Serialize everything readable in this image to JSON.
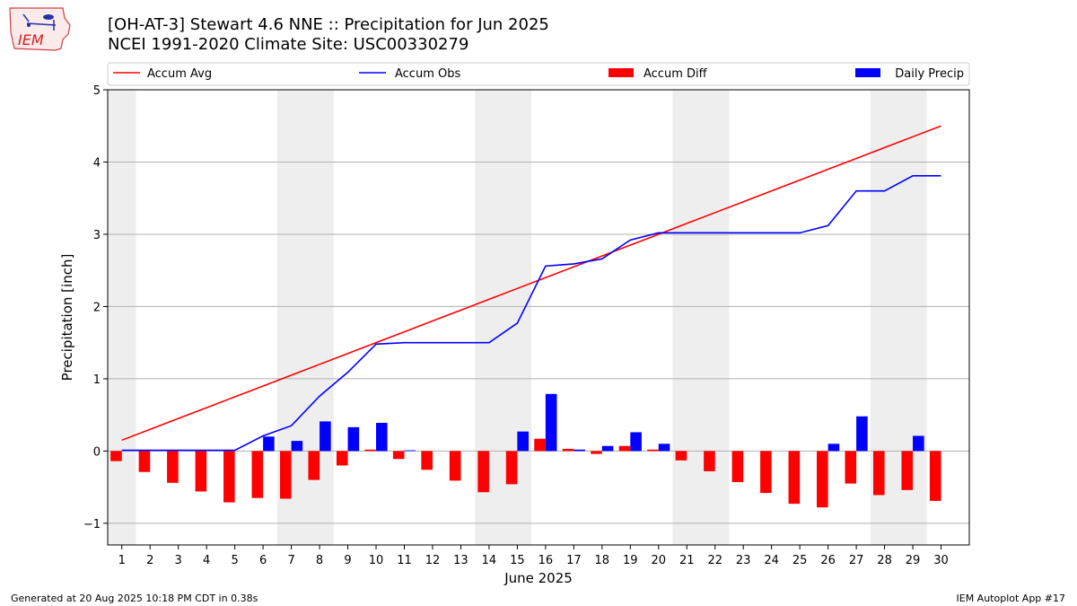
{
  "header": {
    "title_line1": "[OH-AT-3] Stewart 4.6 NNE :: Precipitation for Jun 2025",
    "title_line2": "NCEI 1991-2020 Climate Site: USC00330279",
    "logo_text": "IEM"
  },
  "footer": {
    "generated": "Generated at 20 Aug 2025 10:18 PM CDT in 0.38s",
    "app": "IEM Autoplot App #17"
  },
  "chart_data": {
    "type": "bar",
    "title": "[OH-AT-3] Stewart 4.6 NNE :: Precipitation for Jun 2025",
    "subtitle": "NCEI 1991-2020 Climate Site: USC00330279",
    "xlabel": "June 2025",
    "ylabel": "Precipitation [inch]",
    "ylim": [
      -1.3,
      5
    ],
    "yticks": [
      -1,
      0,
      1,
      2,
      3,
      4,
      5
    ],
    "ytick_labels": [
      "−1",
      "0",
      "1",
      "2",
      "3",
      "4",
      "5"
    ],
    "grid": "horizontal",
    "legend_placement": "top",
    "weekend_shading_days": [
      [
        1,
        1
      ],
      [
        7,
        8
      ],
      [
        14,
        15
      ],
      [
        21,
        22
      ],
      [
        28,
        29
      ]
    ],
    "x": [
      1,
      2,
      3,
      4,
      5,
      6,
      7,
      8,
      9,
      10,
      11,
      12,
      13,
      14,
      15,
      16,
      17,
      18,
      19,
      20,
      21,
      22,
      23,
      24,
      25,
      26,
      27,
      28,
      29,
      30
    ],
    "series": [
      {
        "name": "Accum Avg",
        "kind": "line",
        "color": "#ff0000",
        "values": [
          0.15,
          0.3,
          0.45,
          0.6,
          0.75,
          0.9,
          1.05,
          1.2,
          1.35,
          1.5,
          1.65,
          1.8,
          1.95,
          2.1,
          2.25,
          2.4,
          2.55,
          2.7,
          2.85,
          3.0,
          3.15,
          3.3,
          3.45,
          3.6,
          3.75,
          3.9,
          4.05,
          4.2,
          4.35,
          4.5
        ]
      },
      {
        "name": "Accum Obs",
        "kind": "line",
        "color": "#0000ff",
        "values": [
          0.01,
          0.01,
          0.01,
          0.01,
          0.01,
          0.21,
          0.35,
          0.76,
          1.09,
          1.48,
          1.5,
          1.5,
          1.5,
          1.5,
          1.77,
          2.56,
          2.59,
          2.66,
          2.92,
          3.02,
          3.02,
          3.02,
          3.02,
          3.02,
          3.02,
          3.12,
          3.6,
          3.6,
          3.81,
          3.81
        ]
      },
      {
        "name": "Accum Diff",
        "kind": "bar",
        "color": "#ff0000",
        "values": [
          -0.14,
          -0.29,
          -0.44,
          -0.56,
          -0.71,
          -0.65,
          -0.66,
          -0.4,
          -0.2,
          0.02,
          -0.11,
          -0.26,
          -0.41,
          -0.57,
          -0.46,
          0.17,
          0.03,
          -0.04,
          0.07,
          0.02,
          -0.13,
          -0.28,
          -0.43,
          -0.58,
          -0.73,
          -0.78,
          -0.45,
          -0.61,
          -0.54,
          -0.69
        ]
      },
      {
        "name": "Daily Precip",
        "kind": "bar",
        "color": "#0000ff",
        "values": [
          0,
          0,
          0,
          0,
          0,
          0.2,
          0.14,
          0.41,
          0.33,
          0.39,
          0.01,
          0,
          0,
          0,
          0.27,
          0.79,
          0.02,
          0.07,
          0.26,
          0.1,
          0,
          0,
          0,
          0,
          0,
          0.1,
          0.48,
          0,
          0.21,
          0
        ]
      }
    ]
  }
}
